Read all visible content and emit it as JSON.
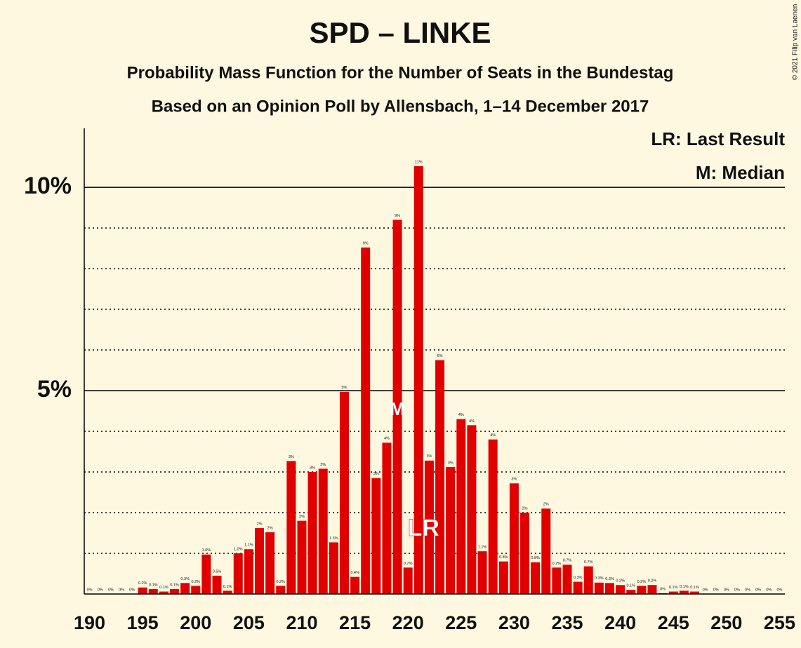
{
  "chart_data": {
    "type": "bar",
    "title": "SPD – LINKE",
    "subtitle": "Probability Mass Function for the Number of Seats in the Bundestag",
    "subtitle2": "Based on an Opinion Poll by Allensbach, 1–14 December 2017",
    "copyright": "© 2021 Filip van Laenen",
    "legend": [
      "LR: Last Result",
      "M: Median"
    ],
    "color": "#e00000",
    "x": [
      190,
      191,
      192,
      193,
      194,
      195,
      196,
      197,
      198,
      199,
      200,
      201,
      202,
      203,
      204,
      205,
      206,
      207,
      208,
      209,
      210,
      211,
      212,
      213,
      214,
      215,
      216,
      217,
      218,
      219,
      220,
      221,
      222,
      223,
      224,
      225,
      226,
      227,
      228,
      229,
      230,
      231,
      232,
      233,
      234,
      235,
      236,
      237,
      238,
      239,
      240,
      241,
      242,
      243,
      244,
      245,
      246,
      247,
      248,
      249,
      250,
      251,
      252,
      253,
      254,
      255
    ],
    "values": [
      0,
      0,
      0,
      0,
      0,
      0.16,
      0.12,
      0.06,
      0.12,
      0.27,
      0.2,
      0.97,
      0.45,
      0.08,
      1.0,
      1.1,
      1.62,
      1.52,
      0.2,
      3.27,
      1.8,
      3.0,
      3.08,
      1.27,
      4.97,
      0.42,
      8.52,
      2.85,
      3.72,
      9.2,
      0.65,
      10.52,
      3.28,
      5.75,
      3.12,
      4.3,
      4.15,
      1.05,
      3.8,
      0.8,
      2.72,
      2.0,
      0.78,
      2.1,
      0.65,
      0.72,
      0.3,
      0.68,
      0.28,
      0.27,
      0.22,
      0.1,
      0.2,
      0.22,
      0.02,
      0.06,
      0.08,
      0.06,
      0,
      0,
      0,
      0,
      0,
      0,
      0,
      0
    ],
    "value_labels": [
      "0%",
      "0%",
      "0%",
      "0%",
      "0%",
      "0.2%",
      "0.1%",
      "0.1%",
      "0.1%",
      "0.3%",
      "0.2%",
      "1.0%",
      "0.5%",
      "0.1%",
      "1.0%",
      "1.1%",
      "2%",
      "2%",
      "0.2%",
      "3%",
      "2%",
      "3%",
      "3%",
      "1.3%",
      "5%",
      "0.4%",
      "9%",
      "3%",
      "4%",
      "9%",
      "0.7%",
      "11%",
      "3%",
      "6%",
      "3%",
      "4%",
      "4%",
      "1.1%",
      "4%",
      "0.8%",
      "3%",
      "2%",
      "0.8%",
      "2%",
      "0.7%",
      "0.7%",
      "0.3%",
      "0.7%",
      "0.3%",
      "0.3%",
      "0.2%",
      "0.1%",
      "0.2%",
      "0.2%",
      "0%",
      "0.1%",
      "0.1%",
      "0.1%",
      "0%",
      "0%",
      "0%",
      "0%",
      "0%",
      "0%",
      "0%",
      "0%"
    ],
    "median": 219,
    "median_marker": "M",
    "last_result": 222,
    "last_result_marker": "LR",
    "xlim": [
      189.5,
      255.5
    ],
    "xticks": [
      190,
      195,
      200,
      205,
      210,
      215,
      220,
      225,
      230,
      235,
      240,
      245,
      250,
      255
    ],
    "ylim": [
      0,
      11.45
    ],
    "yticks": [
      {
        "value": 5,
        "label": "5%"
      },
      {
        "value": 10,
        "label": "10%"
      }
    ],
    "minor_yticks": [
      1,
      2,
      3,
      4,
      6,
      7,
      8,
      9
    ],
    "grid": true
  }
}
